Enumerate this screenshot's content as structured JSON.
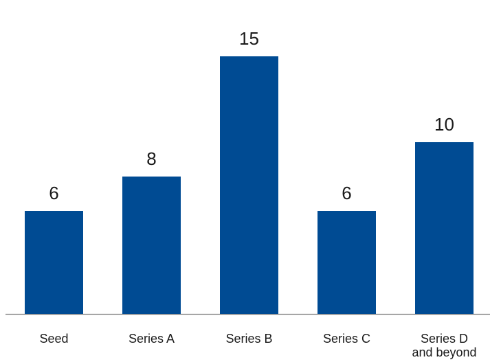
{
  "chart_data": {
    "type": "bar",
    "categories": [
      [
        "Seed"
      ],
      [
        "Series A"
      ],
      [
        "Series B"
      ],
      [
        "Series C"
      ],
      [
        "Series D",
        "and beyond"
      ]
    ],
    "values": [
      6,
      8,
      15,
      6,
      10
    ],
    "data_labels": [
      "6",
      "8",
      "15",
      "6",
      "10"
    ],
    "title": "",
    "xlabel": "",
    "ylabel": "",
    "ylim": [
      0,
      15
    ],
    "grid": false,
    "legend": "none",
    "bar_color": "#004B93",
    "axis_color": "#7f7f7f",
    "text_color": "#1a1a1a"
  }
}
